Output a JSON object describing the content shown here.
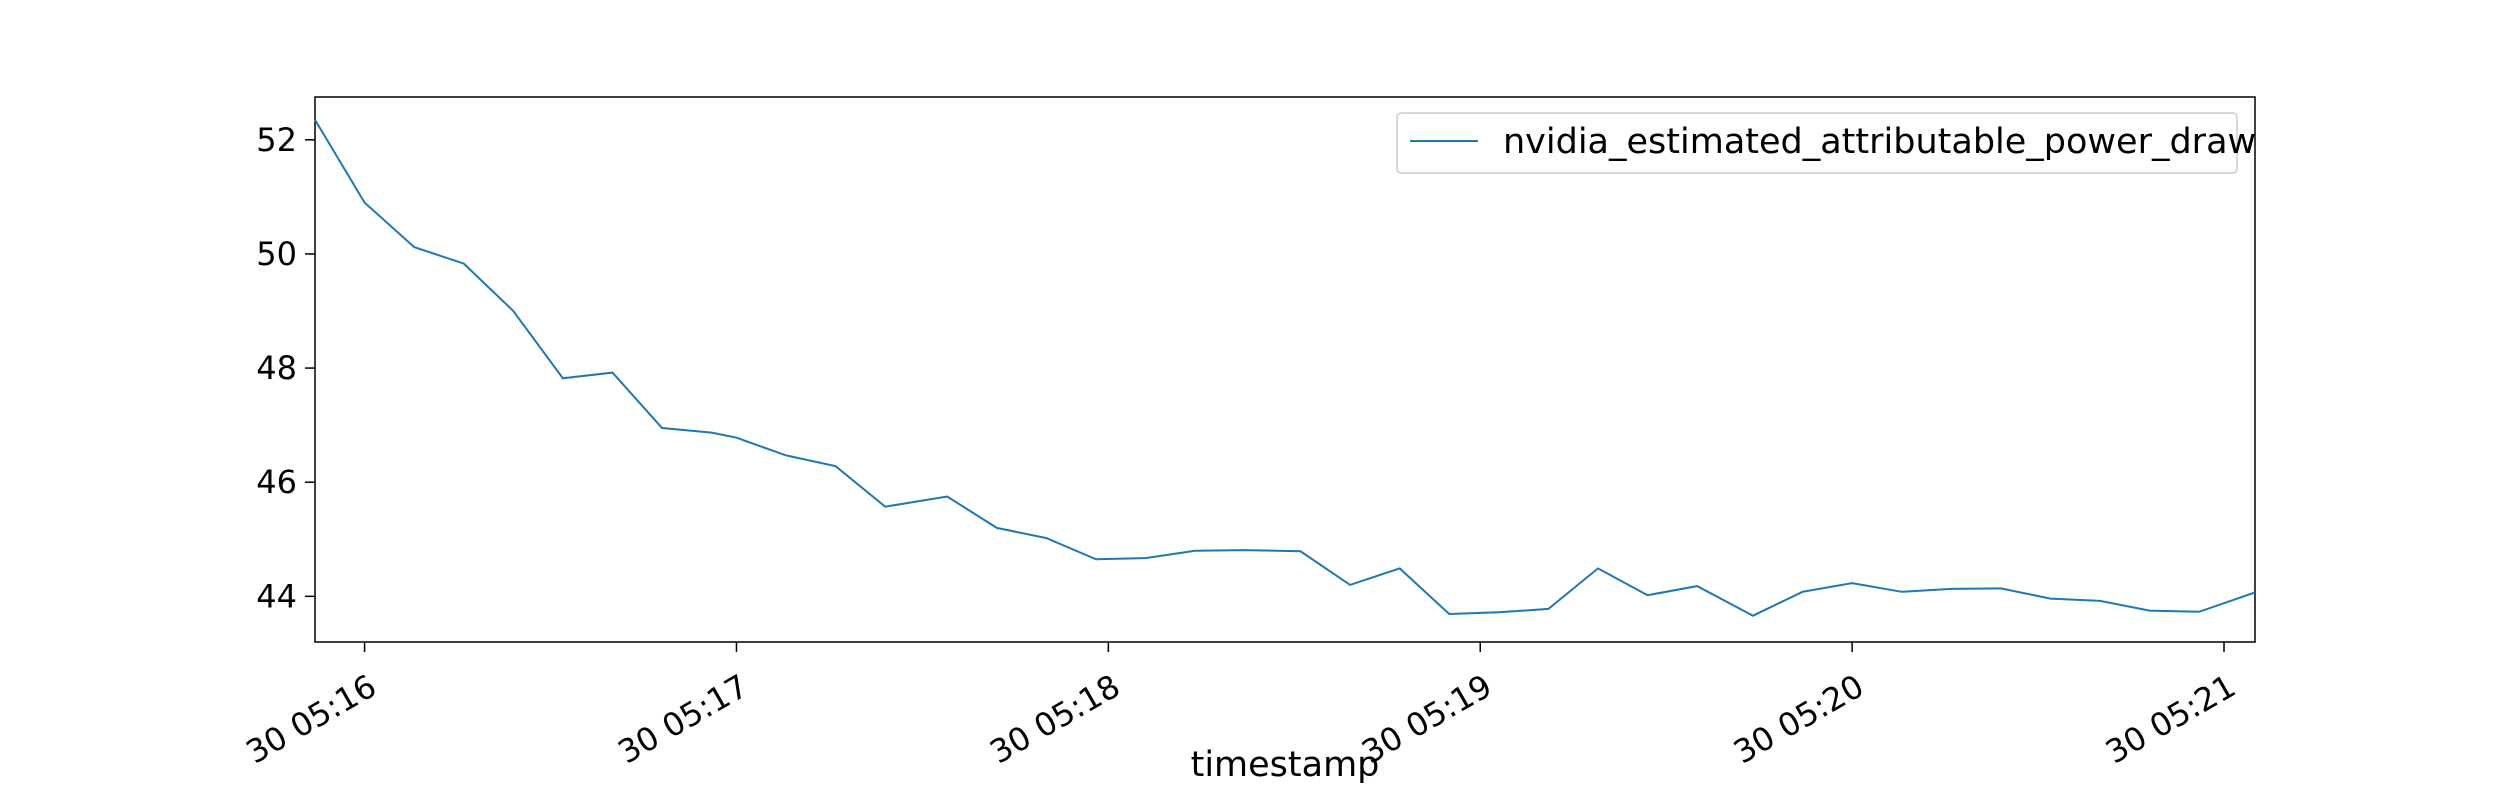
{
  "chart_data": {
    "type": "line",
    "title": "",
    "xlabel": "timestamp",
    "ylabel": "",
    "x_ticks": [
      "30 05:16",
      "30 05:17",
      "30 05:18",
      "30 05:19",
      "30 05:20",
      "30 05:21"
    ],
    "y_ticks": [
      "44",
      "46",
      "48",
      "50",
      "52"
    ],
    "ylim": [
      43.2,
      52.75
    ],
    "grid": false,
    "legend_position": "top-right",
    "series": [
      {
        "name": "nvidia_estimated_attributable_power_draw",
        "color": "#1f77b4",
        "points": [
          [
            "05:15:52",
            52.35
          ],
          [
            "05:16:00",
            50.9
          ],
          [
            "05:16:08",
            50.12
          ],
          [
            "05:16:16",
            49.83
          ],
          [
            "05:16:24",
            49.0
          ],
          [
            "05:16:32",
            47.82
          ],
          [
            "05:16:40",
            47.92
          ],
          [
            "05:16:48",
            46.95
          ],
          [
            "05:16:56",
            46.87
          ],
          [
            "05:17:00",
            46.78
          ],
          [
            "05:17:08",
            46.47
          ],
          [
            "05:17:16",
            46.28
          ],
          [
            "05:17:24",
            45.57
          ],
          [
            "05:17:34",
            45.75
          ],
          [
            "05:17:42",
            45.2
          ],
          [
            "05:17:50",
            45.02
          ],
          [
            "05:17:58",
            44.65
          ],
          [
            "05:18:06",
            44.67
          ],
          [
            "05:18:14",
            44.8
          ],
          [
            "05:18:22",
            44.81
          ],
          [
            "05:18:31",
            44.79
          ],
          [
            "05:18:39",
            44.2
          ],
          [
            "05:18:47",
            44.49
          ],
          [
            "05:18:55",
            43.69
          ],
          [
            "05:19:03",
            43.72
          ],
          [
            "05:19:11",
            43.78
          ],
          [
            "05:19:19",
            44.49
          ],
          [
            "05:19:27",
            44.02
          ],
          [
            "05:19:35",
            44.18
          ],
          [
            "05:19:44",
            43.66
          ],
          [
            "05:19:52",
            44.08
          ],
          [
            "05:20:00",
            44.23
          ],
          [
            "05:20:08",
            44.08
          ],
          [
            "05:20:16",
            44.13
          ],
          [
            "05:20:24",
            44.14
          ],
          [
            "05:20:32",
            43.96
          ],
          [
            "05:20:40",
            43.92
          ],
          [
            "05:20:48",
            43.75
          ],
          [
            "05:20:56",
            43.73
          ],
          [
            "05:21:05",
            44.07
          ]
        ]
      }
    ]
  }
}
